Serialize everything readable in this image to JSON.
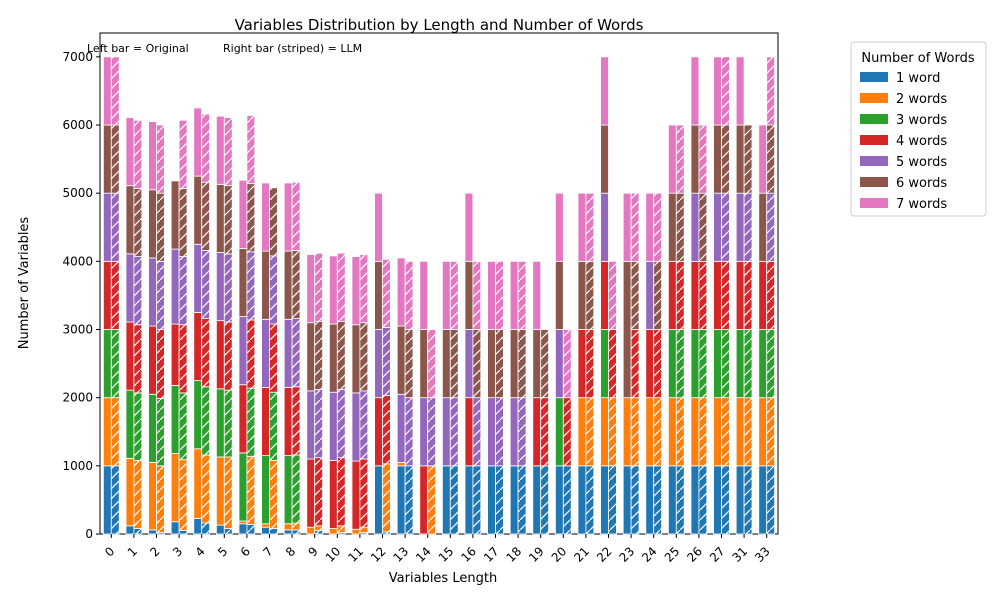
{
  "chart_data": {
    "type": "bar",
    "title": "Variables Distribution by Length and Number of Words",
    "xlabel": "Variables Length",
    "ylabel": "Number of Variables",
    "ylim": [
      0,
      7350
    ],
    "yticks": [
      0,
      1000,
      2000,
      3000,
      4000,
      5000,
      6000,
      7000
    ],
    "grid": false,
    "annotations": [
      "Left bar = Original",
      "Right bar (striped) = LLM"
    ],
    "legend": {
      "title": "Number of Words",
      "placement": "outside-right-top",
      "entries": [
        "1 word",
        "2 words",
        "3 words",
        "4 words",
        "5 words",
        "6 words",
        "7 words"
      ]
    },
    "colors": [
      "#1f77b4",
      "#ff7f0e",
      "#2ca02c",
      "#d62728",
      "#9467bd",
      "#8c564b",
      "#e377c2"
    ],
    "categories": [
      "0",
      "1",
      "2",
      "3",
      "4",
      "5",
      "6",
      "7",
      "8",
      "9",
      "10",
      "11",
      "12",
      "13",
      "14",
      "15",
      "16",
      "17",
      "18",
      "19",
      "20",
      "21",
      "22",
      "23",
      "24",
      "25",
      "26",
      "27",
      "31",
      "33"
    ],
    "series": [
      {
        "name": "Original",
        "stacks": [
          [
            1000,
            1000,
            1000,
            1000,
            1000,
            1000,
            1000
          ],
          [
            120,
            990,
            1000,
            1000,
            1000,
            1000,
            1000
          ],
          [
            60,
            990,
            1000,
            1000,
            1000,
            1000,
            1000
          ],
          [
            180,
            1000,
            1000,
            900,
            1100,
            1000,
            0
          ],
          [
            230,
            1020,
            1000,
            1000,
            1000,
            1000,
            1000
          ],
          [
            130,
            1000,
            1000,
            1000,
            1000,
            1000,
            1000
          ],
          [
            150,
            40,
            1000,
            1000,
            1000,
            1000,
            1000
          ],
          [
            100,
            50,
            1000,
            1000,
            1000,
            1000,
            1000
          ],
          [
            60,
            90,
            1000,
            1000,
            1000,
            1000,
            1000
          ],
          [
            0,
            100,
            0,
            1000,
            1000,
            1000,
            1000
          ],
          [
            0,
            80,
            0,
            1000,
            1000,
            1000,
            1000
          ],
          [
            0,
            70,
            0,
            1000,
            1000,
            1000,
            1000
          ],
          [
            1000,
            0,
            0,
            1000,
            1000,
            1000,
            1000
          ],
          [
            1000,
            50,
            0,
            0,
            1000,
            1000,
            1000
          ],
          [
            0,
            0,
            0,
            1000,
            1000,
            1000,
            1000
          ],
          [
            1000,
            0,
            0,
            0,
            1000,
            1000,
            1000
          ],
          [
            1000,
            0,
            0,
            1000,
            1000,
            1000,
            1000
          ],
          [
            1000,
            0,
            0,
            0,
            1000,
            1000,
            1000
          ],
          [
            1000,
            0,
            0,
            0,
            1000,
            1000,
            1000
          ],
          [
            1000,
            0,
            0,
            1000,
            0,
            1000,
            1000
          ],
          [
            1000,
            0,
            1000,
            0,
            1000,
            1000,
            1000
          ],
          [
            1000,
            1000,
            0,
            1000,
            0,
            1000,
            1000
          ],
          [
            1000,
            1000,
            1000,
            1000,
            1000,
            1000,
            1000
          ],
          [
            1000,
            1000,
            0,
            0,
            0,
            2000,
            1000
          ],
          [
            1000,
            1000,
            0,
            1000,
            1000,
            0,
            1000
          ],
          [
            1000,
            1000,
            1000,
            1000,
            0,
            1000,
            1000
          ],
          [
            1000,
            1000,
            1000,
            1000,
            1000,
            1000,
            1000
          ],
          [
            1000,
            1000,
            1000,
            1000,
            1000,
            1000,
            1000
          ],
          [
            1000,
            1000,
            1000,
            1000,
            1000,
            1000,
            1000
          ],
          [
            1000,
            1000,
            1000,
            1000,
            0,
            1000,
            1000
          ]
        ]
      },
      {
        "name": "LLM",
        "stacks": [
          [
            1000,
            1000,
            1000,
            1000,
            1000,
            1000,
            1000
          ],
          [
            80,
            1000,
            990,
            1000,
            1000,
            1000,
            1000
          ],
          [
            20,
            980,
            990,
            1010,
            1000,
            1000,
            1000
          ],
          [
            50,
            1040,
            980,
            1000,
            1000,
            1000,
            1000
          ],
          [
            160,
            1000,
            1000,
            1000,
            1000,
            1000,
            1000
          ],
          [
            80,
            1050,
            980,
            1000,
            1000,
            1000,
            1000
          ],
          [
            140,
            1000,
            1000,
            1000,
            1000,
            1000,
            1000
          ],
          [
            80,
            1000,
            1000,
            1000,
            1000,
            1000,
            0
          ],
          [
            60,
            100,
            1000,
            1000,
            1000,
            1000,
            1000
          ],
          [
            50,
            70,
            0,
            1000,
            1000,
            1000,
            1000
          ],
          [
            20,
            100,
            0,
            1000,
            1000,
            1000,
            1000
          ],
          [
            20,
            80,
            0,
            1000,
            1000,
            1000,
            1000
          ],
          [
            30,
            1000,
            0,
            1000,
            1000,
            0,
            1000
          ],
          [
            1000,
            0,
            0,
            0,
            1000,
            1000,
            1000
          ],
          [
            0,
            1000,
            0,
            0,
            1000,
            0,
            1000
          ],
          [
            1000,
            0,
            0,
            0,
            1000,
            1000,
            1000
          ],
          [
            1000,
            0,
            0,
            0,
            1000,
            1000,
            1000
          ],
          [
            1000,
            0,
            0,
            0,
            1000,
            1000,
            1000
          ],
          [
            1000,
            0,
            0,
            0,
            1000,
            1000,
            1000
          ],
          [
            1000,
            0,
            0,
            1000,
            0,
            1000,
            0
          ],
          [
            1000,
            0,
            0,
            1000,
            0,
            0,
            1000
          ],
          [
            1000,
            1000,
            0,
            1000,
            0,
            1000,
            1000
          ],
          [
            1000,
            1000,
            0,
            1000,
            0,
            0,
            1000
          ],
          [
            1000,
            1000,
            0,
            1000,
            0,
            1000,
            1000
          ],
          [
            1000,
            1000,
            0,
            1000,
            0,
            1000,
            1000
          ],
          [
            1000,
            1000,
            1000,
            1000,
            0,
            1000,
            1000
          ],
          [
            1000,
            1000,
            1000,
            1000,
            0,
            1000,
            1000
          ],
          [
            1000,
            1000,
            1000,
            1000,
            1000,
            1000,
            1000
          ],
          [
            1000,
            1000,
            1000,
            1000,
            1000,
            1000,
            0
          ],
          [
            1000,
            1000,
            1000,
            1000,
            1000,
            1000,
            1000
          ]
        ]
      }
    ]
  }
}
